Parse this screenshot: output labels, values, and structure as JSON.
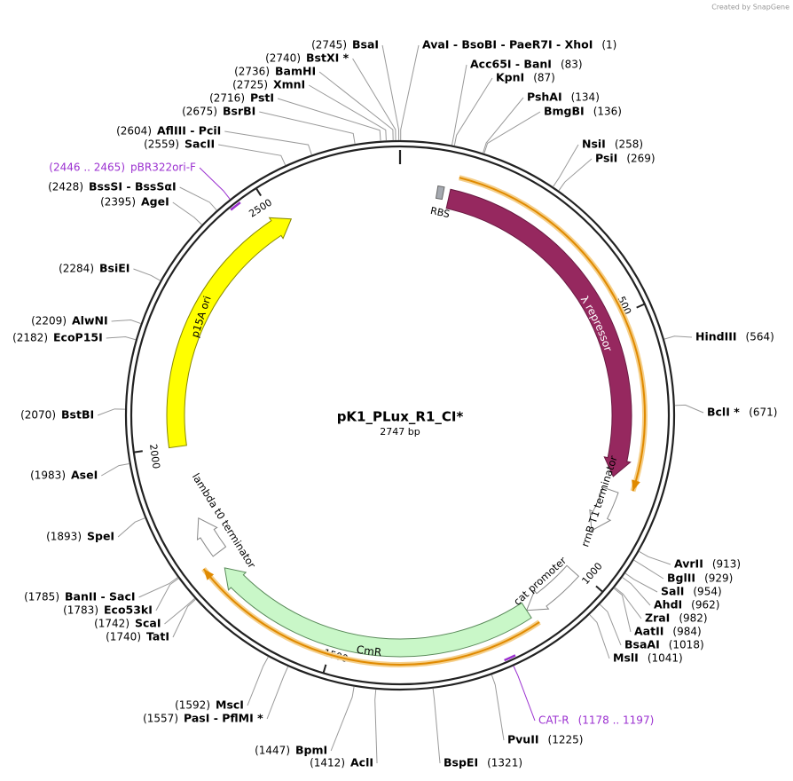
{
  "header": {
    "credit": "Created by SnapGene"
  },
  "plasmid": {
    "name": "pK1_PLux_R1_CI*",
    "length": "2747 bp"
  },
  "ticks": [
    500,
    1000,
    1500,
    2000,
    2500
  ],
  "features": [
    {
      "label": "RBS"
    },
    {
      "label": "λ repressor"
    },
    {
      "label": "rrnB T1 terminator"
    },
    {
      "label": "cat promoter"
    },
    {
      "label": "CmR"
    },
    {
      "label": "lambda t0 terminator"
    },
    {
      "label": "p15A ori"
    }
  ],
  "primers": [
    {
      "label": "pBR322ori-F",
      "site": "(2446 .. 2465)"
    },
    {
      "label": "CAT-R",
      "site": "(1178 .. 1197)"
    }
  ],
  "enzymes": [
    {
      "label": "AvaI - BsoBI - PaeR7I - XhoI",
      "site": "(1)"
    },
    {
      "label": "Acc65I - BanI",
      "site": "(83)"
    },
    {
      "label": "KpnI",
      "site": "(87)"
    },
    {
      "label": "PshAI",
      "site": "(134)"
    },
    {
      "label": "BmgBI",
      "site": "(136)"
    },
    {
      "label": "NsiI",
      "site": "(258)"
    },
    {
      "label": "PsiI",
      "site": "(269)"
    },
    {
      "label": "HindIII",
      "site": "(564)"
    },
    {
      "label": "BclI *",
      "site": "(671)"
    },
    {
      "label": "AvrII",
      "site": "(913)"
    },
    {
      "label": "BglII",
      "site": "(929)"
    },
    {
      "label": "SalI",
      "site": "(954)"
    },
    {
      "label": "AhdI",
      "site": "(962)"
    },
    {
      "label": "ZraI",
      "site": "(982)"
    },
    {
      "label": "AatII",
      "site": "(984)"
    },
    {
      "label": "BsaAI",
      "site": "(1018)"
    },
    {
      "label": "MslI",
      "site": "(1041)"
    },
    {
      "label": "PvuII",
      "site": "(1225)"
    },
    {
      "label": "BspEI",
      "site": "(1321)"
    },
    {
      "label": "AclI",
      "site": "(1412)"
    },
    {
      "label": "BpmI",
      "site": "(1447)"
    },
    {
      "label": "PasI - PflMI *",
      "site": "(1557)"
    },
    {
      "label": "MscI",
      "site": "(1592)"
    },
    {
      "label": "TatI",
      "site": "(1740)"
    },
    {
      "label": "ScaI",
      "site": "(1742)"
    },
    {
      "label": "Eco53kI",
      "site": "(1783)"
    },
    {
      "label": "BanII - SacI",
      "site": "(1785)"
    },
    {
      "label": "SpeI",
      "site": "(1893)"
    },
    {
      "label": "AseI",
      "site": "(1983)"
    },
    {
      "label": "BstBI",
      "site": "(2070)"
    },
    {
      "label": "EcoP15I",
      "site": "(2182)"
    },
    {
      "label": "AlwNI",
      "site": "(2209)"
    },
    {
      "label": "BsiEI",
      "site": "(2284)"
    },
    {
      "label": "AgeI",
      "site": "(2395)"
    },
    {
      "label": "BssSI - BssSαI",
      "site": "(2428)"
    },
    {
      "label": "SacII",
      "site": "(2559)"
    },
    {
      "label": "AflIII - PciI",
      "site": "(2604)"
    },
    {
      "label": "BsrBI",
      "site": "(2675)"
    },
    {
      "label": "PstI",
      "site": "(2716)"
    },
    {
      "label": "XmnI",
      "site": "(2725)"
    },
    {
      "label": "BamHI",
      "site": "(2736)"
    },
    {
      "label": "BstXI *",
      "site": "(2740)"
    },
    {
      "label": "BsaI",
      "site": "(2745)"
    }
  ]
}
